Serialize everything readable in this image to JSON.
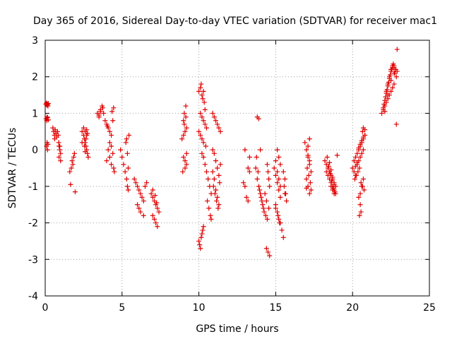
{
  "chart_data": {
    "type": "scatter",
    "title": "Day 365 of 2016, Sidereal Day-to-day VTEC variation (SDTVAR) for receiver mac1",
    "xlabel": "GPS time / hours",
    "ylabel": "SDTVAR / TECUs",
    "xlim": [
      0,
      25
    ],
    "ylim": [
      -4,
      3
    ],
    "xticks": [
      "0",
      "5",
      "10",
      "15",
      "20",
      "25"
    ],
    "yticks": [
      "-4",
      "-3",
      "-2",
      "-1",
      "0",
      "1",
      "2",
      "3"
    ],
    "grid": true,
    "marker": "+",
    "marker_color": "#e00000",
    "series": [
      {
        "name": "mac1",
        "x": [
          0.05,
          0.08,
          0.1,
          0.12,
          0.15,
          0.18,
          0.2,
          0.05,
          0.1,
          0.12,
          0.15,
          0.2,
          0.08,
          0.12,
          0.15,
          0.18,
          0.5,
          0.55,
          0.6,
          0.62,
          0.65,
          0.7,
          0.75,
          0.8,
          0.85,
          0.88,
          0.9,
          0.95,
          1.0,
          1.0,
          0.9,
          0.95,
          1.6,
          1.7,
          1.8,
          1.75,
          1.65,
          1.85,
          1.9,
          1.95,
          2.4,
          2.5,
          2.55,
          2.6,
          2.65,
          2.7,
          2.75,
          2.8,
          2.5,
          2.6,
          2.7,
          2.4,
          2.55,
          2.65,
          2.75,
          2.6,
          2.7,
          3.4,
          3.5,
          3.6,
          3.7,
          3.8,
          3.9,
          3.5,
          3.6,
          3.75,
          4.0,
          4.1,
          4.2,
          4.3,
          4.4,
          4.1,
          4.2,
          4.3,
          4.0,
          4.35,
          4.45,
          4.2,
          4.3,
          4.4,
          4.45,
          4.5,
          4.05,
          4.9,
          5.0,
          5.1,
          5.2,
          5.3,
          5.35,
          5.4,
          5.45,
          5.3,
          5.35,
          5.4,
          5.25,
          5.8,
          5.9,
          6.0,
          6.1,
          6.2,
          6.3,
          6.4,
          6.5,
          6.6,
          6.0,
          6.1,
          6.2,
          6.4,
          6.9,
          7.0,
          7.1,
          7.2,
          7.3,
          7.4,
          7.0,
          7.1,
          7.2,
          7.3,
          7.0,
          7.15,
          7.25,
          8.9,
          9.0,
          9.1,
          9.2,
          9.0,
          9.1,
          9.2,
          9.15,
          9.05,
          9.0,
          9.1,
          9.2,
          9.15,
          9.05,
          8.95,
          10.0,
          10.1,
          10.15,
          10.2,
          10.25,
          10.3,
          10.35,
          10.4,
          10.1,
          10.2,
          10.3,
          10.4,
          10.5,
          10.0,
          10.1,
          10.2,
          10.3,
          10.45,
          10.2,
          10.3,
          10.4,
          10.5,
          10.6,
          10.7,
          10.8,
          10.55,
          10.65,
          10.75,
          10.8,
          10.0,
          10.05,
          10.1,
          10.15,
          10.2,
          10.25,
          10.3,
          10.9,
          11.0,
          11.1,
          11.2,
          11.3,
          11.4,
          10.9,
          11.0,
          11.1,
          11.2,
          11.3,
          11.35,
          10.95,
          11.05,
          11.15,
          11.25,
          10.9,
          11.0,
          11.1,
          11.2,
          11.3,
          11.4,
          12.9,
          13.0,
          13.1,
          13.2,
          13.3,
          13.0,
          13.2,
          13.3,
          13.7,
          13.8,
          13.9,
          14.0,
          14.1,
          14.2,
          13.75,
          13.85,
          13.95,
          14.05,
          14.15,
          14.25,
          14.35,
          14.45,
          14.55,
          14.4,
          14.5,
          14.6,
          14.45,
          14.5,
          14.55,
          14.6,
          14.3,
          14.4,
          13.8,
          13.9,
          14.0,
          14.9,
          15.0,
          15.1,
          15.2,
          15.3,
          15.0,
          15.1,
          15.2,
          15.3,
          15.4,
          15.5,
          15.0,
          15.1,
          15.2,
          15.3,
          15.6,
          15.7,
          15.5,
          15.6,
          15.55,
          15.65,
          15.1,
          15.2,
          15.3,
          15.0,
          15.15,
          15.25,
          16.9,
          17.0,
          17.1,
          17.2,
          17.3,
          17.0,
          17.1,
          17.2,
          17.3,
          17.1,
          17.2,
          17.05,
          17.15,
          17.25,
          17.0,
          17.1,
          17.2,
          18.2,
          18.3,
          18.4,
          18.5,
          18.6,
          18.7,
          18.8,
          18.9,
          18.3,
          18.4,
          18.5,
          18.6,
          18.7,
          18.8,
          18.9,
          18.35,
          18.45,
          18.55,
          18.65,
          18.75,
          18.85,
          18.5,
          18.6,
          18.7,
          18.8,
          18.6,
          18.7,
          18.8,
          19.0,
          20.0,
          20.1,
          20.2,
          20.3,
          20.4,
          20.5,
          20.6,
          20.7,
          20.1,
          20.2,
          20.3,
          20.4,
          20.5,
          20.6,
          20.7,
          20.8,
          20.15,
          20.25,
          20.35,
          20.45,
          20.55,
          20.65,
          20.75,
          20.2,
          20.3,
          20.4,
          20.5,
          20.6,
          20.7,
          20.8,
          20.4,
          20.5,
          20.55,
          20.45,
          20.5,
          20.6,
          20.7,
          20.65,
          20.7,
          20.8,
          21.9,
          22.0,
          22.1,
          22.2,
          22.3,
          22.4,
          22.5,
          22.6,
          22.7,
          22.0,
          22.1,
          22.2,
          22.3,
          22.4,
          22.5,
          22.6,
          22.7,
          22.8,
          22.05,
          22.15,
          22.25,
          22.35,
          22.45,
          22.55,
          22.65,
          22.75,
          22.85,
          22.2,
          22.3,
          22.4,
          22.5,
          22.6,
          22.7,
          22.1,
          22.3,
          22.5,
          22.7,
          22.8,
          22.9,
          22.9,
          22.85
        ],
        "y": [
          1.25,
          1.28,
          1.22,
          1.26,
          1.24,
          1.2,
          1.27,
          0.85,
          0.8,
          0.9,
          0.88,
          0.82,
          0.1,
          0.2,
          0.0,
          0.15,
          0.6,
          0.5,
          0.4,
          0.3,
          0.55,
          0.45,
          0.35,
          0.5,
          0.4,
          0.2,
          0.1,
          0.0,
          -0.1,
          -0.3,
          -0.2,
          0.1,
          -0.6,
          -0.5,
          -0.4,
          -0.3,
          -0.95,
          -0.2,
          -0.1,
          -1.15,
          0.5,
          0.4,
          0.3,
          0.2,
          0.1,
          0.0,
          -0.1,
          -0.2,
          0.6,
          0.5,
          0.4,
          0.2,
          0.1,
          0.3,
          0.45,
          -0.05,
          0.55,
          1.0,
          0.9,
          1.1,
          1.2,
          1.0,
          0.8,
          0.95,
          1.05,
          1.15,
          0.7,
          0.6,
          0.5,
          0.4,
          0.8,
          0.0,
          -0.2,
          -0.4,
          -0.3,
          1.05,
          1.15,
          0.2,
          0.1,
          -0.1,
          -0.5,
          -0.6,
          0.65,
          0.0,
          -0.2,
          -0.4,
          -0.6,
          -0.8,
          -1.0,
          -1.1,
          0.4,
          0.3,
          -0.1,
          -0.5,
          0.2,
          -0.8,
          -0.9,
          -1.0,
          -1.1,
          -1.2,
          -1.3,
          -1.4,
          -1.0,
          -0.9,
          -1.5,
          -1.6,
          -1.7,
          -1.8,
          -1.2,
          -1.3,
          -1.4,
          -1.5,
          -1.6,
          -1.7,
          -1.8,
          -1.9,
          -2.0,
          -2.1,
          -1.1,
          -1.25,
          -1.45,
          0.3,
          0.4,
          0.5,
          0.6,
          -0.2,
          -0.3,
          -0.4,
          1.2,
          1.0,
          0.8,
          -0.5,
          -0.1,
          0.9,
          0.7,
          -0.6,
          1.6,
          1.7,
          1.8,
          1.5,
          1.4,
          1.6,
          1.3,
          1.1,
          1.0,
          0.9,
          0.8,
          0.7,
          0.6,
          0.5,
          0.4,
          0.3,
          0.2,
          0.1,
          -0.1,
          -0.2,
          -0.4,
          -0.6,
          -0.8,
          -1.0,
          -1.2,
          -1.4,
          -1.6,
          -1.8,
          -1.9,
          -2.5,
          -2.6,
          -2.7,
          -2.4,
          -2.3,
          -2.2,
          -2.1,
          1.0,
          0.9,
          0.8,
          0.7,
          0.6,
          0.5,
          0.0,
          -0.1,
          -0.3,
          -0.5,
          -0.7,
          -0.9,
          -1.0,
          -1.2,
          -1.4,
          -1.6,
          -0.6,
          -0.8,
          -1.1,
          -1.3,
          -1.5,
          -0.4,
          -0.9,
          -1.0,
          -1.3,
          -1.4,
          -0.2,
          0.0,
          -0.5,
          -0.6,
          -0.5,
          -0.8,
          -1.0,
          -1.2,
          -1.4,
          -1.6,
          -0.2,
          -0.6,
          -1.1,
          -1.3,
          -1.5,
          -1.7,
          -1.8,
          -1.9,
          -1.6,
          -2.7,
          -2.8,
          -2.9,
          -0.4,
          -0.6,
          -0.8,
          -1.0,
          -1.2,
          -1.4,
          0.9,
          0.85,
          0.0,
          -0.5,
          -0.7,
          -0.9,
          -1.1,
          -1.3,
          -1.5,
          -1.7,
          -1.9,
          -2.0,
          -2.2,
          -2.4,
          -0.3,
          -0.6,
          -0.8,
          -1.0,
          -1.2,
          -1.4,
          -0.6,
          -0.8,
          -1.0,
          -1.2,
          0.0,
          -0.2,
          -0.4,
          -1.6,
          -1.8,
          -2.0,
          0.2,
          0.0,
          -0.2,
          -0.4,
          -0.6,
          -0.8,
          -1.0,
          -1.2,
          -1.1,
          0.1,
          -0.3,
          -0.5,
          -0.7,
          -0.9,
          -1.05,
          -0.15,
          0.3,
          -0.3,
          -0.4,
          -0.5,
          -0.6,
          -0.7,
          -0.8,
          -0.9,
          -1.0,
          -0.6,
          -0.7,
          -0.8,
          -0.9,
          -1.0,
          -1.1,
          -1.2,
          -0.2,
          -0.45,
          -0.65,
          -0.85,
          -1.05,
          -1.15,
          -0.35,
          -0.55,
          -0.75,
          -0.95,
          -1.0,
          -1.1,
          -1.2,
          -0.15,
          -0.5,
          -0.6,
          -0.7,
          -0.4,
          -0.3,
          -0.2,
          -0.1,
          0.0,
          -0.3,
          -0.2,
          -0.1,
          0.0,
          0.1,
          0.2,
          0.3,
          0.4,
          -0.8,
          -0.7,
          -0.6,
          -0.5,
          -0.9,
          -1.0,
          -1.1,
          -0.45,
          -0.35,
          0.05,
          0.15,
          0.25,
          0.35,
          0.55,
          -1.3,
          -1.5,
          -1.7,
          -1.8,
          -1.2,
          -1.0,
          -0.8,
          0.5,
          0.6,
          0.4,
          1.0,
          1.1,
          1.2,
          1.3,
          1.4,
          1.5,
          1.6,
          1.7,
          1.8,
          1.15,
          1.35,
          1.55,
          1.75,
          1.95,
          2.15,
          2.25,
          2.3,
          2.2,
          1.25,
          1.45,
          1.65,
          1.85,
          2.05,
          2.2,
          2.35,
          2.1,
          2.0,
          1.6,
          1.8,
          2.0,
          2.2,
          2.3,
          2.25,
          1.05,
          1.5,
          1.9,
          2.1,
          2.2,
          2.15,
          2.75,
          0.7
        ]
      }
    ]
  }
}
